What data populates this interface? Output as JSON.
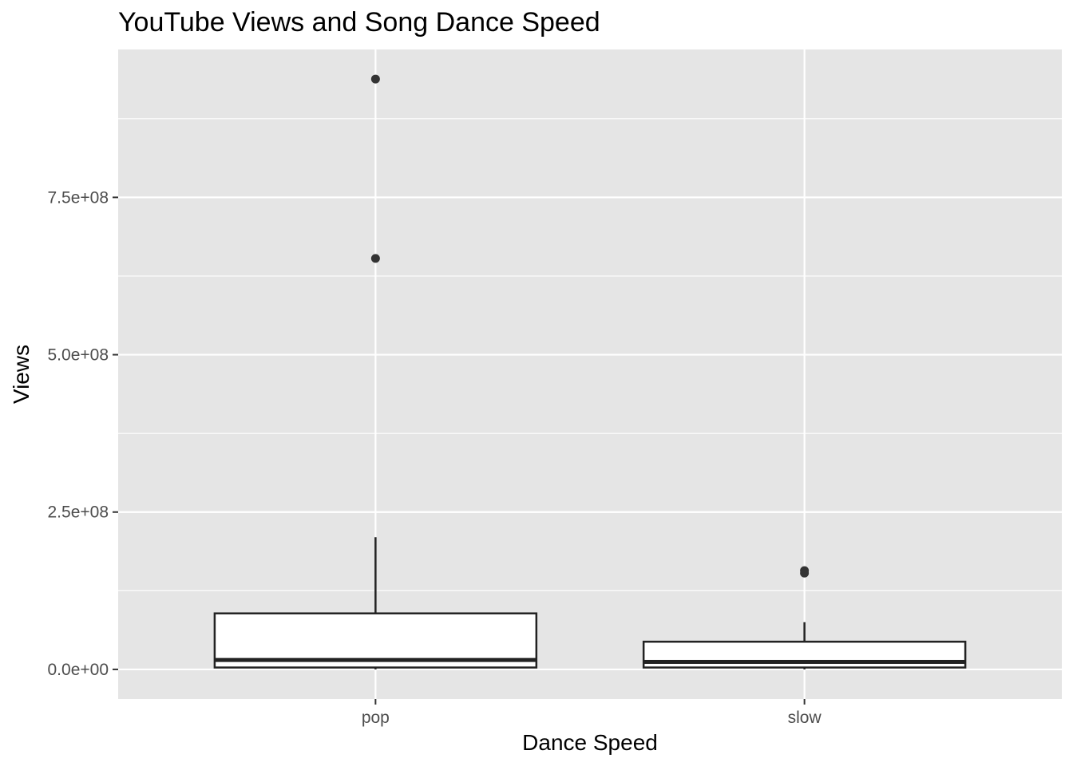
{
  "chart_data": {
    "type": "boxplot",
    "title": "YouTube Views and Song Dance Speed",
    "xlabel": "Dance Speed",
    "ylabel": "Views",
    "categories": [
      "pop",
      "slow"
    ],
    "ylim": [
      -47000000,
      985000000
    ],
    "yticks": [
      {
        "value": 0,
        "label": "0.0e+00"
      },
      {
        "value": 250000000,
        "label": "2.5e+08"
      },
      {
        "value": 500000000,
        "label": "5.0e+08"
      },
      {
        "value": 750000000,
        "label": "7.5e+08"
      }
    ],
    "y_minor_ticks": [
      125000000,
      375000000,
      625000000,
      875000000
    ],
    "grid": true,
    "legend": "none",
    "boxes": [
      {
        "category": "pop",
        "whisker_low": 0,
        "q1": 3000000,
        "median": 15000000,
        "q3": 89000000,
        "whisker_high": 210000000,
        "outliers": [
          653000000,
          938000000
        ]
      },
      {
        "category": "slow",
        "whisker_low": 0,
        "q1": 3000000,
        "median": 12000000,
        "q3": 44000000,
        "whisker_high": 75000000,
        "outliers": [
          153000000,
          157000000
        ]
      }
    ],
    "colors": {
      "panel_background": "#e5e5e5",
      "grid": "#ffffff",
      "box_fill": "#ffffff",
      "box_line": "#222222",
      "outlier": "#333333",
      "tick_text": "#4d4d4d"
    }
  }
}
